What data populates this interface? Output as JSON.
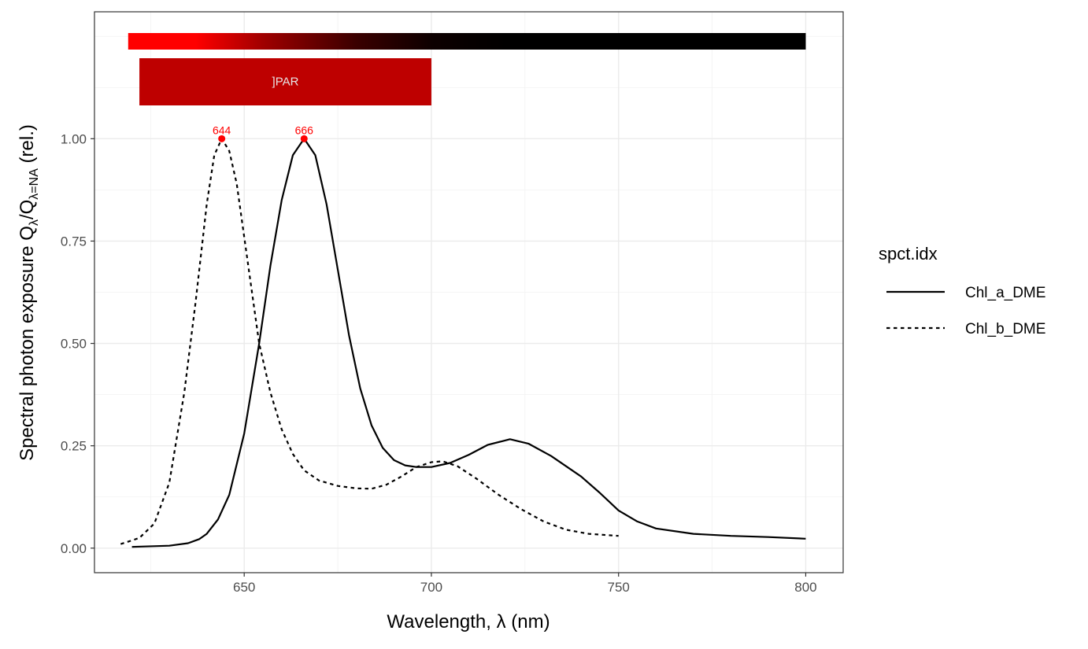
{
  "chart_data": {
    "type": "line",
    "xlabel": "Wavelength, λ (nm)",
    "ylabel": {
      "prefix": "Spectral  photon  exposure  Q",
      "sub1": "λ",
      "mid": "/Q",
      "sub2": "λ=NA",
      "suffix": "  (rel.)"
    },
    "xlim": [
      610,
      810
    ],
    "ylim": [
      -0.06,
      1.31
    ],
    "x_ticks": [
      650,
      700,
      750,
      800
    ],
    "x_tick_labels": [
      "650",
      "700",
      "750",
      "800"
    ],
    "y_ticks": [
      0,
      0.25,
      0.5,
      0.75,
      1.0
    ],
    "y_tick_labels": [
      "0.00",
      "0.25",
      "0.50",
      "0.75",
      "1.00"
    ],
    "grid": true,
    "legend": {
      "title": "spct.idx",
      "position": "right"
    },
    "series": [
      {
        "name": "Chl_a_DME",
        "linestyle": "solid",
        "color": "#000000",
        "x": [
          620,
          630,
          635,
          638,
          640,
          643,
          646,
          650,
          654,
          657,
          660,
          663,
          666,
          669,
          672,
          675,
          678,
          681,
          684,
          687,
          690,
          693,
          696,
          700,
          705,
          710,
          715,
          721,
          726,
          732,
          740,
          745,
          750,
          755,
          760,
          770,
          780,
          790,
          800
        ],
        "y": [
          0.003,
          0.006,
          0.012,
          0.022,
          0.035,
          0.07,
          0.13,
          0.28,
          0.5,
          0.69,
          0.85,
          0.96,
          1.0,
          0.96,
          0.84,
          0.68,
          0.52,
          0.39,
          0.3,
          0.245,
          0.215,
          0.202,
          0.198,
          0.198,
          0.208,
          0.228,
          0.252,
          0.266,
          0.255,
          0.225,
          0.175,
          0.135,
          0.092,
          0.065,
          0.048,
          0.035,
          0.03,
          0.027,
          0.023
        ]
      },
      {
        "name": "Chl_b_DME",
        "linestyle": "dashed",
        "color": "#000000",
        "x": [
          617,
          622,
          626,
          630,
          634,
          637,
          640,
          642,
          644,
          646,
          648,
          650,
          652,
          654,
          657,
          660,
          663,
          666,
          670,
          675,
          680,
          684,
          688,
          692,
          696,
          700,
          703,
          707,
          712,
          718,
          724,
          730,
          736,
          742,
          750
        ],
        "y": [
          0.01,
          0.025,
          0.06,
          0.16,
          0.38,
          0.6,
          0.84,
          0.96,
          1.0,
          0.97,
          0.89,
          0.76,
          0.63,
          0.5,
          0.38,
          0.29,
          0.23,
          0.19,
          0.165,
          0.152,
          0.146,
          0.145,
          0.155,
          0.175,
          0.198,
          0.21,
          0.212,
          0.2,
          0.17,
          0.13,
          0.095,
          0.065,
          0.045,
          0.035,
          0.03
        ]
      }
    ],
    "peaks": [
      {
        "x": 644,
        "y": 1.0,
        "label": "644",
        "color": "#ff0000"
      },
      {
        "x": 666,
        "y": 1.0,
        "label": "666",
        "color": "#ff0000"
      }
    ],
    "wavebands": {
      "gradient_range": [
        619,
        800
      ],
      "gradient_stops": [
        {
          "wl": 619,
          "color": "#ff0000"
        },
        {
          "wl": 637,
          "color": "#ff0000"
        },
        {
          "wl": 655,
          "color": "#a00000"
        },
        {
          "wl": 680,
          "color": "#3a0000"
        },
        {
          "wl": 700,
          "color": "#0d0000"
        },
        {
          "wl": 720,
          "color": "#000000"
        },
        {
          "wl": 800,
          "color": "#000000"
        }
      ],
      "par_band": {
        "label": "]PAR",
        "range": [
          622,
          700
        ],
        "color": "#be0000"
      }
    }
  }
}
